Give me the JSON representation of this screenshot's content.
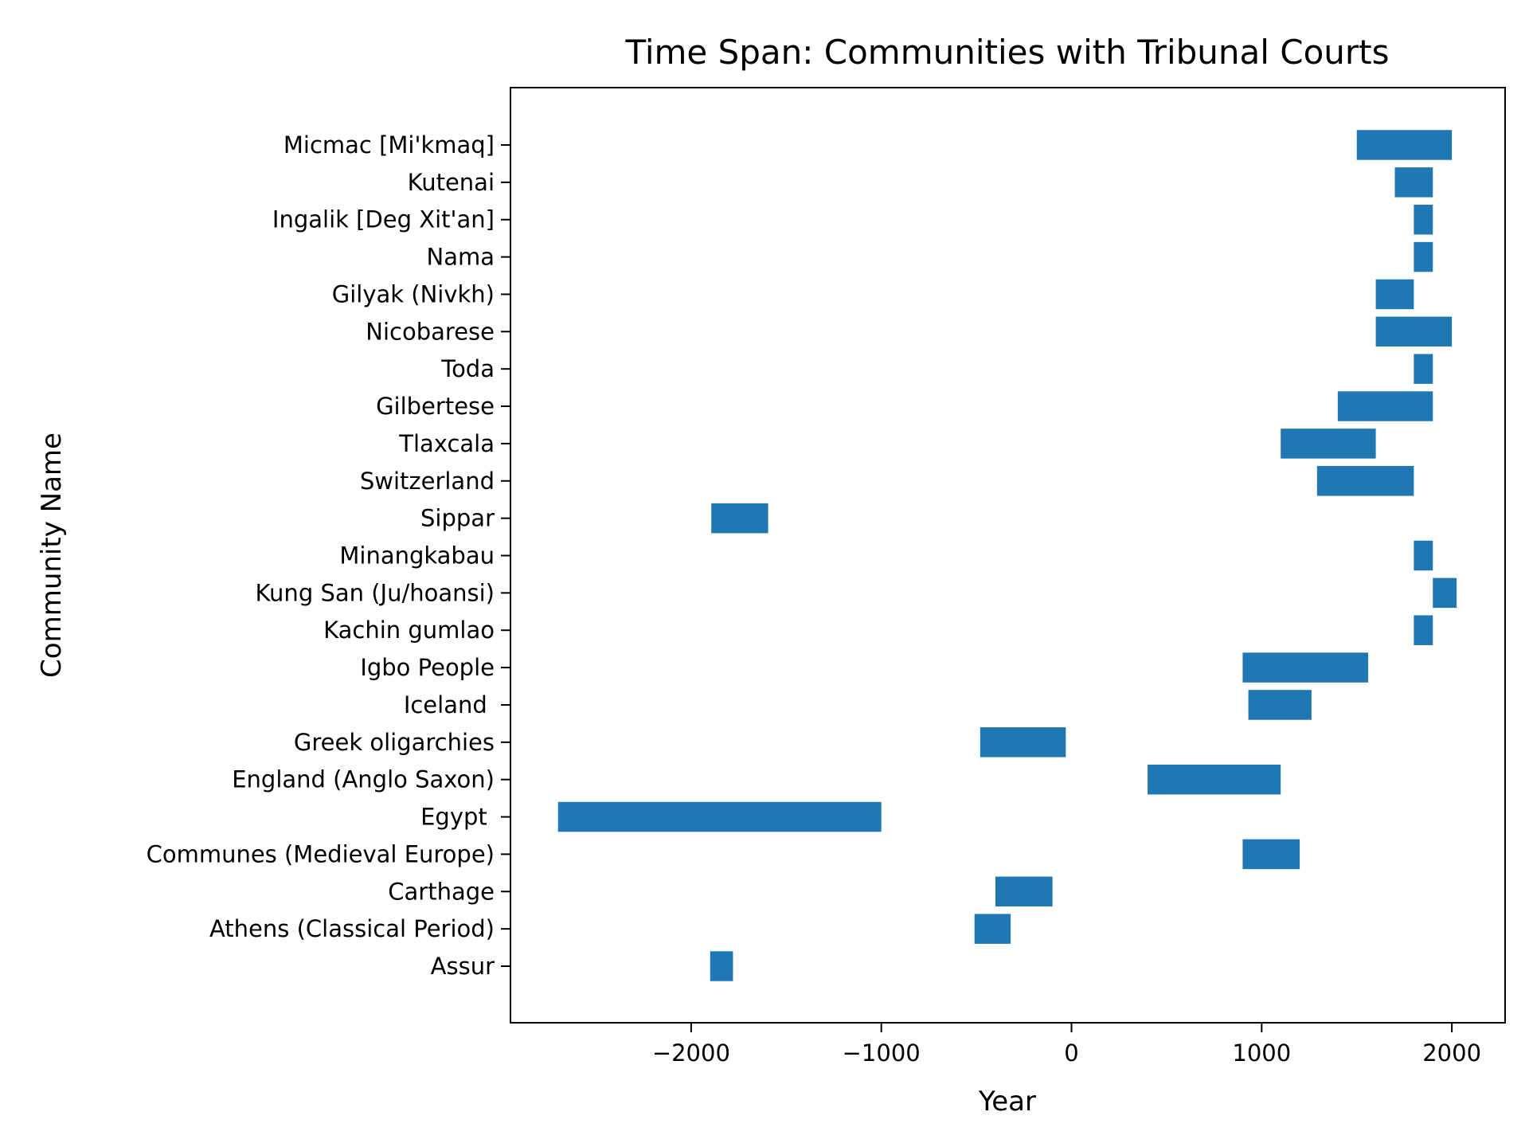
{
  "chart_data": {
    "type": "bar",
    "orientation": "horizontal",
    "title": "Time Span: Communities with Tribunal Courts",
    "xlabel": "Year",
    "ylabel": "Community Name",
    "xlim": [
      -2950,
      2280
    ],
    "xticks": [
      -2000,
      -1000,
      0,
      1000,
      2000
    ],
    "xtick_labels": [
      "−2000",
      "−1000",
      "0",
      "1000",
      "2000"
    ],
    "grid": false,
    "bar_color": "#1f77b4",
    "categories": [
      "Assur",
      "Athens (Classical Period)",
      "Carthage",
      "Communes (Medieval Europe)",
      "Egypt ",
      "England (Anglo Saxon)",
      "Greek oligarchies",
      "Iceland ",
      "Igbo People",
      "Kachin gumlao",
      "Kung San (Ju/hoansi)",
      "Minangkabau",
      "Sippar",
      "Switzerland",
      "Tlaxcala",
      "Gilbertese",
      "Toda",
      "Nicobarese",
      "Gilyak (Nivkh)",
      "Nama",
      "Ingalik [Deg Xit'an]",
      "Kutenai",
      "Micmac [Mi'kmaq]"
    ],
    "spans": [
      {
        "start": -1900,
        "end": -1780
      },
      {
        "start": -510,
        "end": -320
      },
      {
        "start": -400,
        "end": -100
      },
      {
        "start": 900,
        "end": 1200
      },
      {
        "start": -2700,
        "end": -1000
      },
      {
        "start": 400,
        "end": 1100
      },
      {
        "start": -480,
        "end": -30
      },
      {
        "start": 930,
        "end": 1262
      },
      {
        "start": 900,
        "end": 1560
      },
      {
        "start": 1800,
        "end": 1900
      },
      {
        "start": 1900,
        "end": 2025
      },
      {
        "start": 1800,
        "end": 1900
      },
      {
        "start": -1894,
        "end": -1595
      },
      {
        "start": 1291,
        "end": 1800
      },
      {
        "start": 1100,
        "end": 1600
      },
      {
        "start": 1400,
        "end": 1900
      },
      {
        "start": 1800,
        "end": 1900
      },
      {
        "start": 1600,
        "end": 2000
      },
      {
        "start": 1600,
        "end": 1800
      },
      {
        "start": 1800,
        "end": 1900
      },
      {
        "start": 1800,
        "end": 1900
      },
      {
        "start": 1700,
        "end": 1900
      },
      {
        "start": 1500,
        "end": 2000
      }
    ]
  }
}
